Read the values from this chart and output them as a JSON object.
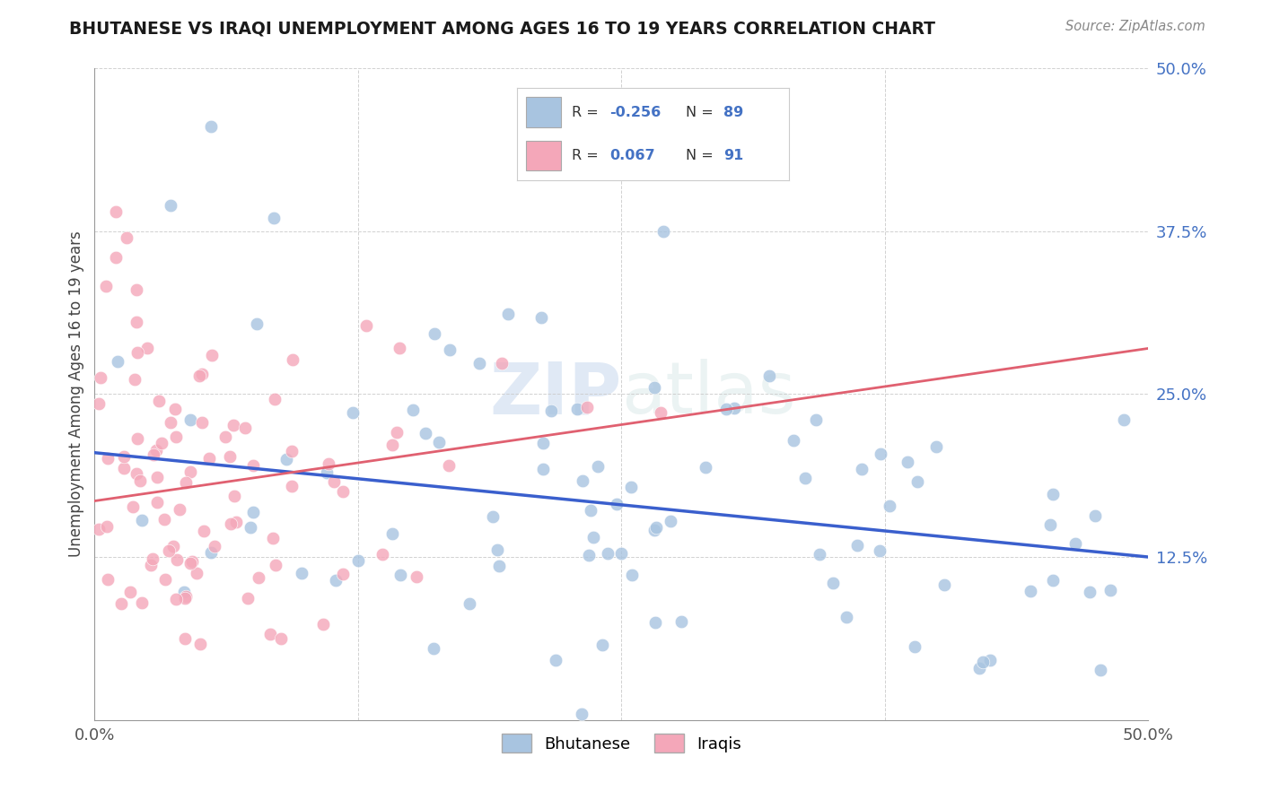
{
  "title": "BHUTANESE VS IRAQI UNEMPLOYMENT AMONG AGES 16 TO 19 YEARS CORRELATION CHART",
  "source": "Source: ZipAtlas.com",
  "ylabel": "Unemployment Among Ages 16 to 19 years",
  "xmin": 0.0,
  "xmax": 0.5,
  "ymin": 0.0,
  "ymax": 0.5,
  "bhutanese_color": "#a8c4e0",
  "iraqi_color": "#f4a7b9",
  "line_blue": "#3a5fcd",
  "line_pink": "#e06070",
  "legend_R_blue": "-0.256",
  "legend_N_blue": "89",
  "legend_R_pink": "0.067",
  "legend_N_pink": "91",
  "watermark": "ZIPatlas",
  "blue_line_x0": 0.0,
  "blue_line_x1": 0.5,
  "blue_line_y0": 0.205,
  "blue_line_y1": 0.125,
  "pink_line_x0": 0.0,
  "pink_line_x1": 0.5,
  "pink_line_y0": 0.168,
  "pink_line_y1": 0.285
}
